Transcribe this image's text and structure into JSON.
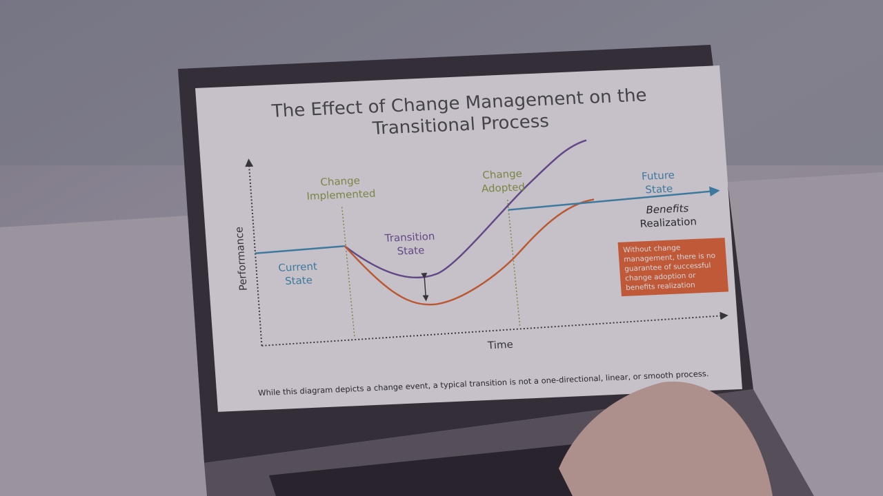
{
  "title": {
    "lines": [
      "The Effect of Change Management on the",
      "Transitional Process"
    ]
  },
  "labels": {
    "change_implemented": [
      "Change",
      "Implemented"
    ],
    "change_adopted": [
      "Change",
      "Adopted"
    ],
    "future_state": [
      "Future",
      "State"
    ],
    "benefits_realization": [
      "Benefits",
      "Realization"
    ],
    "transition_state": [
      "Transition",
      "State"
    ],
    "current_state": [
      "Current",
      "State"
    ]
  },
  "axes": {
    "y": "Performance",
    "x": "Time"
  },
  "callout": [
    "Without change",
    "management, there is no",
    "guarantee of successful",
    "change adoption or",
    "benefits realization"
  ],
  "footnote": "While this diagram depicts a change event, a typical transition is not a one-directional, linear, or smooth process."
}
